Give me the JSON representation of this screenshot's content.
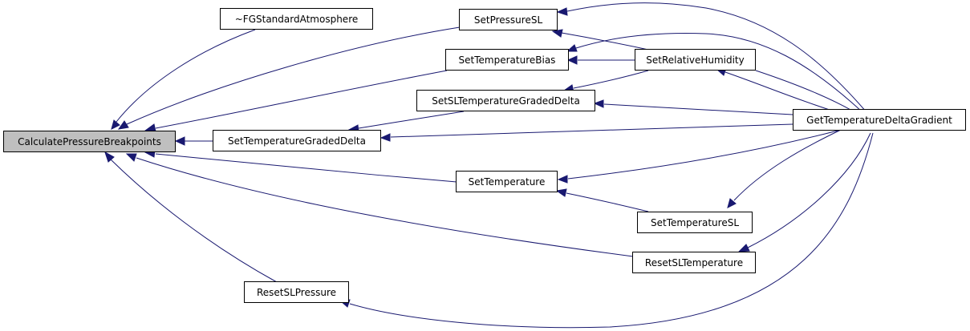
{
  "graph": {
    "nodes": {
      "calc": "CalculatePressureBreakpoints",
      "dtor": "~FGStandardAtmosphere",
      "setPressureSL": "SetPressureSL",
      "setTempBias": "SetTemperatureBias",
      "setRelHum": "SetRelativeHumidity",
      "setSLTempGD": "SetSLTemperatureGradedDelta",
      "setTempGD": "SetTemperatureGradedDelta",
      "getTempDG": "GetTemperatureDeltaGradient",
      "setTemp": "SetTemperature",
      "setTempSL": "SetTemperatureSL",
      "resetSLTemp": "ResetSLTemperature",
      "resetSLPress": "ResetSLPressure"
    },
    "edges": [
      {
        "from": "dtor",
        "to": "calc"
      },
      {
        "from": "setPressureSL",
        "to": "calc"
      },
      {
        "from": "setTempBias",
        "to": "calc"
      },
      {
        "from": "setTempGD",
        "to": "calc"
      },
      {
        "from": "setTemp",
        "to": "calc"
      },
      {
        "from": "resetSLTemp",
        "to": "calc"
      },
      {
        "from": "resetSLPress",
        "to": "calc"
      },
      {
        "from": "setSLTempGD",
        "to": "setTempGD"
      },
      {
        "from": "getTempDG",
        "to": "setTempGD"
      },
      {
        "from": "setRelHum",
        "to": "setPressureSL"
      },
      {
        "from": "getTempDG",
        "to": "setPressureSL"
      },
      {
        "from": "setRelHum",
        "to": "setTempBias"
      },
      {
        "from": "getTempDG",
        "to": "setTempBias"
      },
      {
        "from": "setRelHum",
        "to": "setSLTempGD"
      },
      {
        "from": "getTempDG",
        "to": "setSLTempGD"
      },
      {
        "from": "getTempDG",
        "to": "setRelHum"
      },
      {
        "from": "setTempSL",
        "to": "setTemp"
      },
      {
        "from": "getTempDG",
        "to": "setTemp"
      },
      {
        "from": "getTempDG",
        "to": "setTempSL"
      },
      {
        "from": "getTempDG",
        "to": "resetSLTemp"
      },
      {
        "from": "getTempDG",
        "to": "resetSLPress"
      }
    ]
  }
}
